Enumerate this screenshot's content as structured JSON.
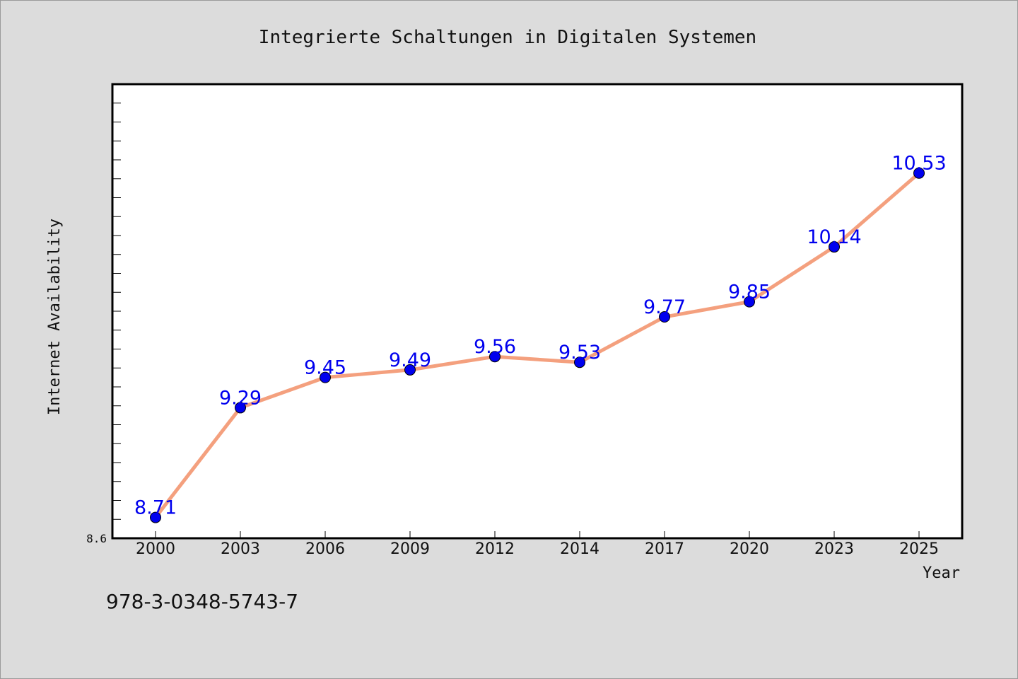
{
  "chart_data": {
    "type": "line",
    "title": "Integrierte Schaltungen in Digitalen Systemen",
    "xlabel": "Year",
    "ylabel": "Internet Availability",
    "categories": [
      "2000",
      "2003",
      "2006",
      "2009",
      "2012",
      "2014",
      "2017",
      "2020",
      "2023",
      "2025"
    ],
    "series": [
      {
        "values": [
          8.71,
          9.29,
          9.45,
          9.49,
          9.56,
          9.53,
          9.77,
          9.85,
          10.14,
          10.53
        ]
      }
    ],
    "data_labels": [
      "8.71",
      "9.29",
      "9.45",
      "9.49",
      "9.56",
      "9.53",
      "9.77",
      "9.85",
      "10.14",
      "10.53"
    ],
    "ylim": [
      8.6,
      11.0
    ],
    "y_tick_labels": [
      {
        "value": 8.6,
        "label": "8.6"
      }
    ],
    "grid": false,
    "legend": "none",
    "colors": {
      "line": "#f4a07e",
      "marker": "#0000ee",
      "label": "#0000ee"
    }
  },
  "footer": {
    "isbn": "978-3-0348-5743-7"
  }
}
